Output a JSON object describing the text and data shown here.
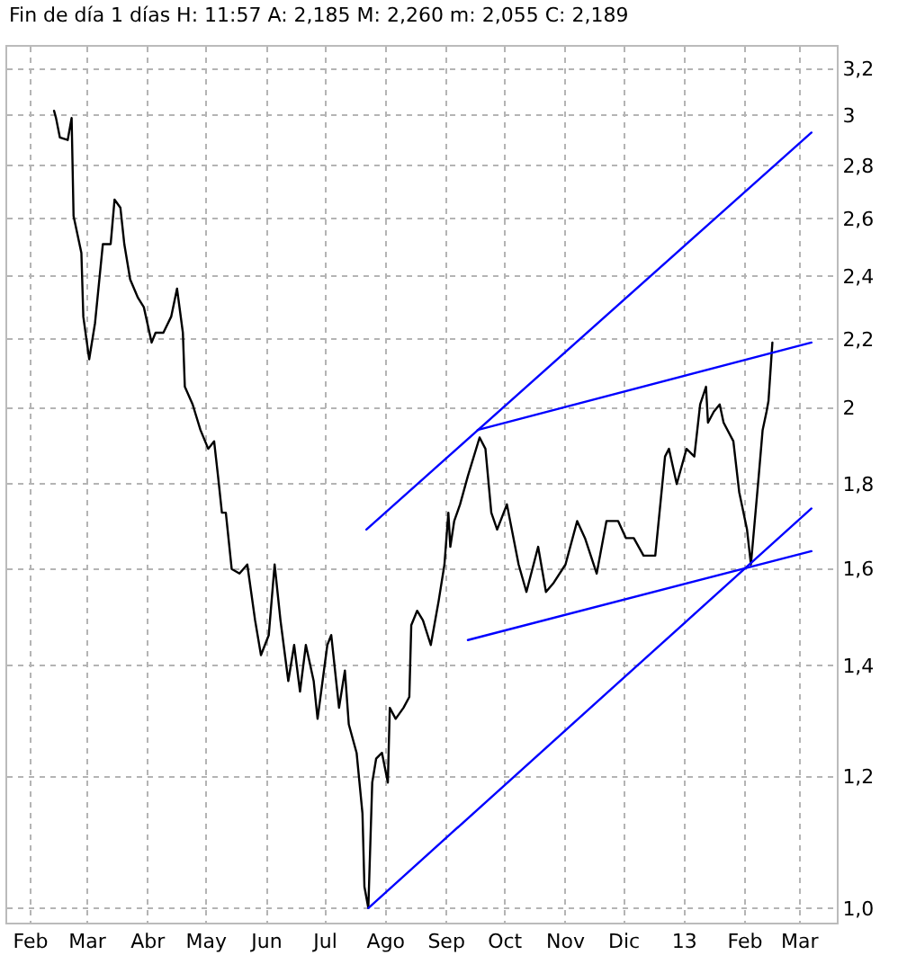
{
  "chart_data": {
    "type": "line",
    "title": "Fin de día 1 días H: 11:57 A: 2,185 M: 2,260 m: 2,055 C: 2,189",
    "x": [
      "2012-02-13",
      "2012-02-14",
      "2012-02-16",
      "2012-02-20",
      "2012-02-22",
      "2012-02-23",
      "2012-02-27",
      "2012-02-28",
      "2012-03-02",
      "2012-03-05",
      "2012-03-09",
      "2012-03-13",
      "2012-03-15",
      "2012-03-18",
      "2012-03-20",
      "2012-03-23",
      "2012-03-27",
      "2012-03-30",
      "2012-04-03",
      "2012-04-05",
      "2012-04-09",
      "2012-04-13",
      "2012-04-16",
      "2012-04-19",
      "2012-04-20",
      "2012-04-24",
      "2012-04-28",
      "2012-05-02",
      "2012-05-05",
      "2012-05-07",
      "2012-05-09",
      "2012-05-11",
      "2012-05-14",
      "2012-05-18",
      "2012-05-22",
      "2012-05-26",
      "2012-05-29",
      "2012-06-02",
      "2012-06-05",
      "2012-06-08",
      "2012-06-12",
      "2012-06-15",
      "2012-06-18",
      "2012-06-21",
      "2012-06-25",
      "2012-06-27",
      "2012-07-02",
      "2012-07-04",
      "2012-07-08",
      "2012-07-11",
      "2012-07-13",
      "2012-07-17",
      "2012-07-20",
      "2012-07-21",
      "2012-07-23",
      "2012-07-25",
      "2012-07-27",
      "2012-07-30",
      "2012-08-02",
      "2012-08-03",
      "2012-08-06",
      "2012-08-10",
      "2012-08-13",
      "2012-08-14",
      "2012-08-17",
      "2012-08-20",
      "2012-08-24",
      "2012-08-28",
      "2012-08-31",
      "2012-09-02",
      "2012-09-03",
      "2012-09-05",
      "2012-09-08",
      "2012-09-12",
      "2012-09-18",
      "2012-09-21",
      "2012-09-24",
      "2012-09-27",
      "2012-10-02",
      "2012-10-08",
      "2012-10-12",
      "2012-10-18",
      "2012-10-22",
      "2012-10-26",
      "2012-11-01",
      "2012-11-07",
      "2012-11-11",
      "2012-11-17",
      "2012-11-22",
      "2012-11-28",
      "2012-12-02",
      "2012-12-06",
      "2012-12-11",
      "2012-12-17",
      "2012-12-22",
      "2012-12-24",
      "2012-12-28",
      "2013-01-02",
      "2013-01-06",
      "2013-01-09",
      "2013-01-12",
      "2013-01-13",
      "2013-01-16",
      "2013-01-19",
      "2013-01-21",
      "2013-01-26",
      "2013-01-29",
      "2013-02-02",
      "2013-02-04",
      "2013-02-08",
      "2013-02-10",
      "2013-02-12",
      "2013-02-13",
      "2013-02-15"
    ],
    "series": [
      {
        "color": "#000000",
        "values": [
          3.02,
          2.99,
          2.91,
          2.9,
          2.99,
          2.61,
          2.48,
          2.27,
          2.14,
          2.25,
          2.51,
          2.51,
          2.67,
          2.64,
          2.51,
          2.39,
          2.33,
          2.3,
          2.19,
          2.22,
          2.22,
          2.27,
          2.36,
          2.22,
          2.06,
          2.01,
          1.94,
          1.89,
          1.91,
          1.82,
          1.73,
          1.73,
          1.6,
          1.59,
          1.61,
          1.49,
          1.42,
          1.46,
          1.61,
          1.49,
          1.37,
          1.44,
          1.35,
          1.44,
          1.37,
          1.3,
          1.44,
          1.46,
          1.32,
          1.39,
          1.29,
          1.24,
          1.14,
          1.03,
          1.0,
          1.19,
          1.23,
          1.24,
          1.19,
          1.32,
          1.3,
          1.32,
          1.34,
          1.48,
          1.51,
          1.49,
          1.44,
          1.53,
          1.61,
          1.73,
          1.65,
          1.71,
          1.75,
          1.82,
          1.92,
          1.89,
          1.73,
          1.69,
          1.75,
          1.61,
          1.55,
          1.65,
          1.55,
          1.57,
          1.61,
          1.71,
          1.67,
          1.59,
          1.71,
          1.71,
          1.67,
          1.67,
          1.63,
          1.63,
          1.87,
          1.89,
          1.8,
          1.89,
          1.87,
          2.01,
          2.06,
          1.96,
          1.99,
          2.01,
          1.96,
          1.91,
          1.78,
          1.69,
          1.61,
          1.82,
          1.94,
          1.99,
          2.02,
          2.19
        ]
      },
      {
        "type": "line",
        "color": "#0000ff",
        "x": [
          "2012-07-22",
          "2013-03-07"
        ],
        "values": [
          1.69,
          2.93
        ]
      },
      {
        "type": "line",
        "color": "#0000ff",
        "x": [
          "2012-09-17",
          "2013-03-07"
        ],
        "values": [
          1.94,
          2.19
        ]
      },
      {
        "type": "line",
        "color": "#0000ff",
        "x": [
          "2012-09-12",
          "2013-03-07"
        ],
        "values": [
          1.45,
          1.64
        ]
      },
      {
        "type": "line",
        "color": "#0000ff",
        "x": [
          "2012-07-23",
          "2013-03-07"
        ],
        "values": [
          1.0,
          1.74
        ]
      }
    ],
    "xlim": [
      "2012-01-20",
      "2013-03-20"
    ],
    "xticks": [
      {
        "value": "2012-02-01",
        "label": "Feb"
      },
      {
        "value": "2012-03-01",
        "label": "Mar"
      },
      {
        "value": "2012-04-01",
        "label": "Abr"
      },
      {
        "value": "2012-05-01",
        "label": "May"
      },
      {
        "value": "2012-06-01",
        "label": "Jun"
      },
      {
        "value": "2012-07-01",
        "label": "Jul"
      },
      {
        "value": "2012-08-01",
        "label": "Ago"
      },
      {
        "value": "2012-09-01",
        "label": "Sep"
      },
      {
        "value": "2012-10-01",
        "label": "Oct"
      },
      {
        "value": "2012-11-01",
        "label": "Nov"
      },
      {
        "value": "2012-12-01",
        "label": "Dic"
      },
      {
        "value": "2013-01-01",
        "label": "13"
      },
      {
        "value": "2013-02-01",
        "label": "Feb"
      },
      {
        "value": "2013-03-01",
        "label": "Mar"
      }
    ],
    "ylim": [
      0.98,
      3.3
    ],
    "yticks": [
      {
        "value": 1.0,
        "label": "1,0"
      },
      {
        "value": 1.2,
        "label": "1,2"
      },
      {
        "value": 1.4,
        "label": "1,4"
      },
      {
        "value": 1.6,
        "label": "1,6"
      },
      {
        "value": 1.8,
        "label": "1,8"
      },
      2,
      {
        "value": 2.2,
        "label": "2,2"
      },
      {
        "value": 2.4,
        "label": "2,4"
      },
      {
        "value": 2.6,
        "label": "2,6"
      },
      {
        "value": 2.8,
        "label": "2,8"
      },
      3,
      {
        "value": 3.2,
        "label": "3,2"
      }
    ],
    "log": true,
    "grid": true
  }
}
